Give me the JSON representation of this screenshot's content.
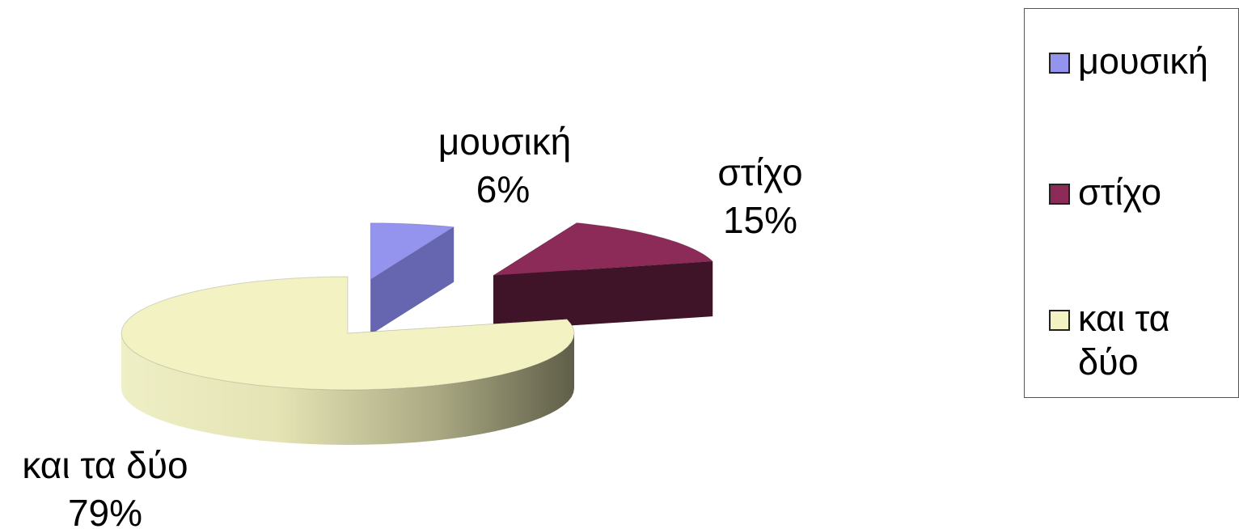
{
  "chart_data": {
    "type": "pie",
    "variant": "3d-exploded",
    "categories": [
      "μουσική",
      "στίχο",
      "και τα δύο"
    ],
    "values": [
      6,
      15,
      79
    ],
    "unit": "%",
    "colors": [
      "#9494ee",
      "#8c2b58",
      "#f2f2c2"
    ],
    "side_colors": [
      "#6565b0",
      "#3f1428",
      "#b9b888"
    ],
    "data_labels": [
      {
        "name": "μουσική",
        "value": "6%"
      },
      {
        "name": "στίχο",
        "value": "15%"
      },
      {
        "name": "και τα δύο",
        "value": "79%"
      }
    ],
    "legend": {
      "position": "right",
      "entries": [
        "μουσική",
        "στίχο",
        "και τα δύο"
      ]
    }
  }
}
